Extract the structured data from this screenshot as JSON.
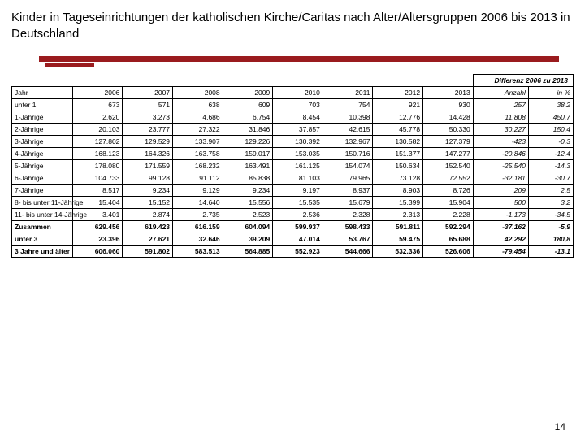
{
  "title": "Kinder in Tageseinrichtungen der katholischen Kirche/Caritas nach Alter/Altersgruppen 2006 bis 2013 in Deutschland",
  "accent_color": "#9a1b1e",
  "diff_header": "Differenz 2006 zu 2013",
  "col_headers": [
    "Jahr",
    "2006",
    "2007",
    "2008",
    "2009",
    "2010",
    "2011",
    "2012",
    "2013",
    "Anzahl",
    "in %"
  ],
  "rows": [
    {
      "label": "unter 1",
      "v": [
        "673",
        "571",
        "638",
        "609",
        "703",
        "754",
        "921",
        "930",
        "257",
        "38,2"
      ],
      "bold": false
    },
    {
      "label": "1-Jährige",
      "v": [
        "2.620",
        "3.273",
        "4.686",
        "6.754",
        "8.454",
        "10.398",
        "12.776",
        "14.428",
        "11.808",
        "450,7"
      ],
      "bold": false
    },
    {
      "label": "2-Jährige",
      "v": [
        "20.103",
        "23.777",
        "27.322",
        "31.846",
        "37.857",
        "42.615",
        "45.778",
        "50.330",
        "30.227",
        "150,4"
      ],
      "bold": false
    },
    {
      "label": "3-Jährige",
      "v": [
        "127.802",
        "129.529",
        "133.907",
        "129.226",
        "130.392",
        "132.967",
        "130.582",
        "127.379",
        "-423",
        "-0,3"
      ],
      "bold": false
    },
    {
      "label": "4-Jährige",
      "v": [
        "168.123",
        "164.326",
        "163.758",
        "159.017",
        "153.035",
        "150.716",
        "151.377",
        "147.277",
        "-20.846",
        "-12,4"
      ],
      "bold": false
    },
    {
      "label": "5-Jährige",
      "v": [
        "178.080",
        "171.559",
        "168.232",
        "163.491",
        "161.125",
        "154.074",
        "150.634",
        "152.540",
        "-25.540",
        "-14,3"
      ],
      "bold": false
    },
    {
      "label": "6-Jährige",
      "v": [
        "104.733",
        "99.128",
        "91.112",
        "85.838",
        "81.103",
        "79.965",
        "73.128",
        "72.552",
        "-32.181",
        "-30,7"
      ],
      "bold": false
    },
    {
      "label": "7-Jährige",
      "v": [
        "8.517",
        "9.234",
        "9.129",
        "9.234",
        "9.197",
        "8.937",
        "8.903",
        "8.726",
        "209",
        "2,5"
      ],
      "bold": false
    },
    {
      "label": "8- bis unter 11-Jährige",
      "v": [
        "15.404",
        "15.152",
        "14.640",
        "15.556",
        "15.535",
        "15.679",
        "15.399",
        "15.904",
        "500",
        "3,2"
      ],
      "bold": false
    },
    {
      "label": "11- bis unter 14-Jährige",
      "v": [
        "3.401",
        "2.874",
        "2.735",
        "2.523",
        "2.536",
        "2.328",
        "2.313",
        "2.228",
        "-1.173",
        "-34,5"
      ],
      "bold": false
    },
    {
      "label": "Zusammen",
      "v": [
        "629.456",
        "619.423",
        "616.159",
        "604.094",
        "599.937",
        "598.433",
        "591.811",
        "592.294",
        "-37.162",
        "-5,9"
      ],
      "bold": true
    },
    {
      "label": "unter 3",
      "v": [
        "23.396",
        "27.621",
        "32.646",
        "39.209",
        "47.014",
        "53.767",
        "59.475",
        "65.688",
        "42.292",
        "180,8"
      ],
      "bold": true
    },
    {
      "label": "3 Jahre und älter",
      "v": [
        "606.060",
        "591.802",
        "583.513",
        "564.885",
        "552.923",
        "544.666",
        "532.336",
        "526.606",
        "-79.454",
        "-13,1"
      ],
      "bold": true
    }
  ],
  "page_number": "14"
}
